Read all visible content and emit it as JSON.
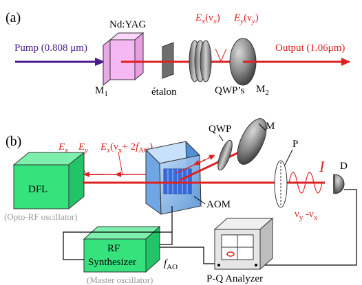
{
  "colors": {
    "beam": "#e02020",
    "pump": "#4a1a8c",
    "crystal": "#f6b8f2",
    "box_green": "#36e27c",
    "aom_blue": "#7fb6ee",
    "mirror_gray": "#7b7b7b",
    "muted_text": "#9a9a9a"
  },
  "panel_a": {
    "label": "(a)",
    "pump": "Pump (0.808 μm)",
    "crystal": "Nd:YAG",
    "m1": "M",
    "m1_sub": "1",
    "etalon": "étalon",
    "qwps": "QWP’s",
    "m2": "M",
    "m2_sub": "2",
    "ex": "E",
    "ex_sub": "x",
    "ex_arg": "(ν",
    "ex_arg_sub": "x",
    "ex_close": ")",
    "ey": "E",
    "ey_sub": "y",
    "ey_arg": "(ν",
    "ey_arg_sub": "y",
    "ey_close": ")",
    "output": "Output (1.06μm)"
  },
  "panel_b": {
    "label": "(b)",
    "ex": "E",
    "ex_sub": "x",
    "ey": "E",
    "ey_sub": "y",
    "ex_shift": "E",
    "ex_shift_sub": "x",
    "ex_shift_arg": "(ν",
    "ex_shift_arg_sub": "x",
    "ex_shift_plus": "+ 2",
    "ex_shift_f": "f",
    "ex_shift_f_sub": "AO",
    "ex_shift_close": ")",
    "qwp": "QWP",
    "m": "M",
    "p": "P",
    "intensity": "I",
    "d": "D",
    "dfl": "DFL",
    "dfl_caption": "(Opto-RF oscillator)",
    "aom": "AOM",
    "beat_a": "ν",
    "beat_a_sub": "y",
    "beat_sep": " -ν",
    "beat_b_sub": "x",
    "rf_line1": "RF",
    "rf_line2": "Synthesizer",
    "rf_caption": "(Master oscillator)",
    "fao": "f",
    "fao_sub": "AO",
    "analyzer": "P-Q Analyzer"
  }
}
